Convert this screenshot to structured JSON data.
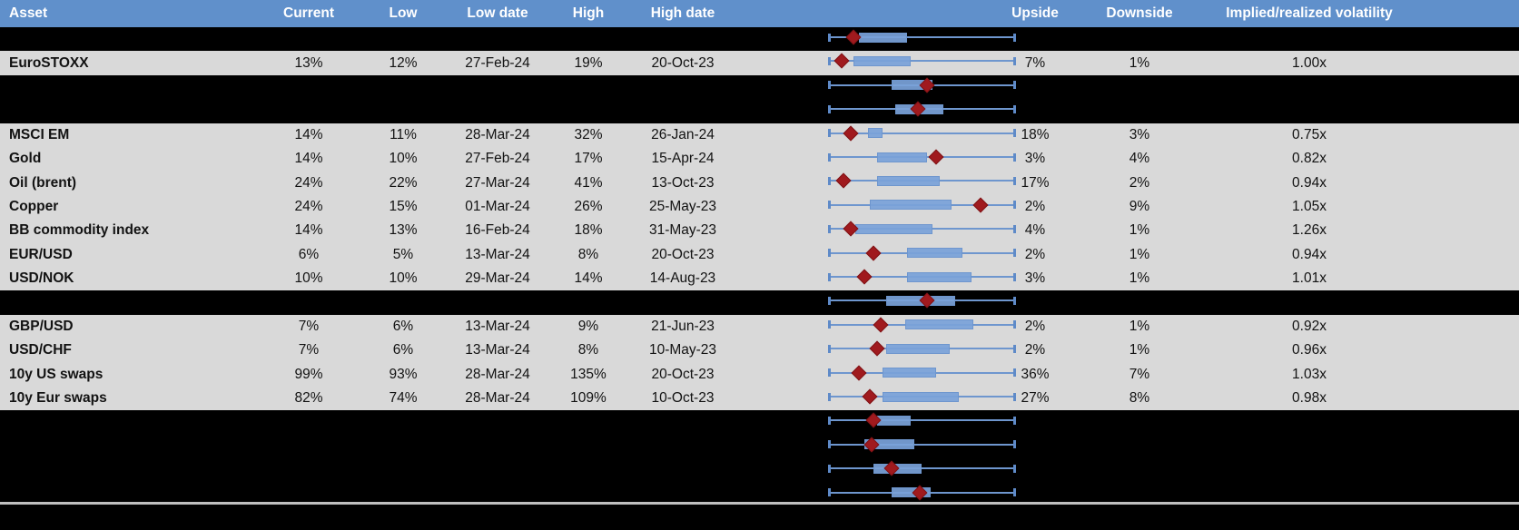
{
  "table": {
    "columns": {
      "asset": "Asset",
      "current": "Current",
      "low": "Low",
      "low_date": "Low date",
      "high": "High",
      "high_date": "High date",
      "upside": "Upside",
      "downside": "Downside",
      "vol": "Implied/realized volatility"
    },
    "rows": [
      {
        "type": "spacer"
      },
      {
        "type": "data",
        "asset": "EuroSTOXX",
        "current": "13%",
        "low": "12%",
        "low_date": "27-Feb-24",
        "high": "19%",
        "high_date": "20-Oct-23",
        "upside": "7%",
        "downside": "1%",
        "vol": "1.00x"
      },
      {
        "type": "spacer"
      },
      {
        "type": "spacer"
      },
      {
        "type": "data",
        "asset": "MSCI EM",
        "current": "14%",
        "low": "11%",
        "low_date": "28-Mar-24",
        "high": "32%",
        "high_date": "26-Jan-24",
        "upside": "18%",
        "downside": "3%",
        "vol": "0.75x"
      },
      {
        "type": "data",
        "asset": "Gold",
        "current": "14%",
        "low": "10%",
        "low_date": "27-Feb-24",
        "high": "17%",
        "high_date": "15-Apr-24",
        "upside": "3%",
        "downside": "4%",
        "vol": "0.82x"
      },
      {
        "type": "data",
        "asset": "Oil (brent)",
        "current": "24%",
        "low": "22%",
        "low_date": "27-Mar-24",
        "high": "41%",
        "high_date": "13-Oct-23",
        "upside": "17%",
        "downside": "2%",
        "vol": "0.94x"
      },
      {
        "type": "data",
        "asset": "Copper",
        "current": "24%",
        "low": "15%",
        "low_date": "01-Mar-24",
        "high": "26%",
        "high_date": "25-May-23",
        "upside": "2%",
        "downside": "9%",
        "vol": "1.05x"
      },
      {
        "type": "data",
        "asset": "BB commodity index",
        "current": "14%",
        "low": "13%",
        "low_date": "16-Feb-24",
        "high": "18%",
        "high_date": "31-May-23",
        "upside": "4%",
        "downside": "1%",
        "vol": "1.26x"
      },
      {
        "type": "data",
        "asset": "EUR/USD",
        "current": "6%",
        "low": "5%",
        "low_date": "13-Mar-24",
        "high": "8%",
        "high_date": "20-Oct-23",
        "upside": "2%",
        "downside": "1%",
        "vol": "0.94x"
      },
      {
        "type": "data",
        "asset": "USD/NOK",
        "current": "10%",
        "low": "10%",
        "low_date": "29-Mar-24",
        "high": "14%",
        "high_date": "14-Aug-23",
        "upside": "3%",
        "downside": "1%",
        "vol": "1.01x"
      },
      {
        "type": "spacer"
      },
      {
        "type": "data",
        "asset": "GBP/USD",
        "current": "7%",
        "low": "6%",
        "low_date": "13-Mar-24",
        "high": "9%",
        "high_date": "21-Jun-23",
        "upside": "2%",
        "downside": "1%",
        "vol": "0.92x"
      },
      {
        "type": "data",
        "asset": "USD/CHF",
        "current": "7%",
        "low": "6%",
        "low_date": "13-Mar-24",
        "high": "8%",
        "high_date": "10-May-23",
        "upside": "2%",
        "downside": "1%",
        "vol": "0.96x"
      },
      {
        "type": "data",
        "asset": "10y US swaps",
        "current": "99%",
        "low": "93%",
        "low_date": "28-Mar-24",
        "high": "135%",
        "high_date": "20-Oct-23",
        "upside": "36%",
        "downside": "7%",
        "vol": "1.03x"
      },
      {
        "type": "data",
        "asset": "10y Eur swaps",
        "current": "82%",
        "low": "74%",
        "low_date": "28-Mar-24",
        "high": "109%",
        "high_date": "10-Oct-23",
        "upside": "27%",
        "downside": "8%",
        "vol": "0.98x"
      }
    ]
  },
  "chart_data": {
    "type": "boxplot-range",
    "title": "",
    "description": "Per-row normalized volatility range chart: full-width whisker (min to max of range), blue box = inner range, red diamond = current level position within range. Positions are fractions 0-1 of the whisker span.",
    "whisker_range": [
      0,
      1
    ],
    "grid": false,
    "legend": "none",
    "rows": [
      {
        "label": "",
        "box": [
          0.16,
          0.42
        ],
        "marker": 0.13
      },
      {
        "label": "EuroSTOXX",
        "box": [
          0.13,
          0.44
        ],
        "marker": 0.07
      },
      {
        "label": "",
        "box": [
          0.34,
          0.56
        ],
        "marker": 0.53
      },
      {
        "label": "",
        "box": [
          0.36,
          0.62
        ],
        "marker": 0.48
      },
      {
        "label": "MSCI EM",
        "box": [
          0.21,
          0.29
        ],
        "marker": 0.12
      },
      {
        "label": "Gold",
        "box": [
          0.26,
          0.53
        ],
        "marker": 0.58
      },
      {
        "label": "Oil (brent)",
        "box": [
          0.26,
          0.6
        ],
        "marker": 0.08
      },
      {
        "label": "Copper",
        "box": [
          0.22,
          0.66
        ],
        "marker": 0.82
      },
      {
        "label": "BB commodity index",
        "box": [
          0.14,
          0.56
        ],
        "marker": 0.12
      },
      {
        "label": "EUR/USD",
        "box": [
          0.42,
          0.72
        ],
        "marker": 0.24
      },
      {
        "label": "USD/NOK",
        "box": [
          0.42,
          0.77
        ],
        "marker": 0.19
      },
      {
        "label": "",
        "box": [
          0.31,
          0.68
        ],
        "marker": 0.53
      },
      {
        "label": "GBP/USD",
        "box": [
          0.41,
          0.78
        ],
        "marker": 0.28
      },
      {
        "label": "USD/CHF",
        "box": [
          0.31,
          0.65
        ],
        "marker": 0.26
      },
      {
        "label": "10y US swaps",
        "box": [
          0.29,
          0.58
        ],
        "marker": 0.16
      },
      {
        "label": "10y Eur swaps",
        "box": [
          0.29,
          0.7
        ],
        "marker": 0.22
      },
      {
        "label": "",
        "box": [
          0.26,
          0.44
        ],
        "marker": 0.24
      },
      {
        "label": "",
        "box": [
          0.19,
          0.46
        ],
        "marker": 0.23
      },
      {
        "label": "",
        "box": [
          0.24,
          0.5
        ],
        "marker": 0.34
      },
      {
        "label": "",
        "box": [
          0.34,
          0.55
        ],
        "marker": 0.49
      }
    ]
  },
  "colors": {
    "header_blue": "#6090CB",
    "row_gray": "#D9D9D9",
    "row_black": "#000000",
    "whisker_blue": "#6E96CE",
    "box_blue": "#7AA1D8",
    "marker_red": "#A01A1E",
    "separator_gray": "#BFBFBF"
  }
}
